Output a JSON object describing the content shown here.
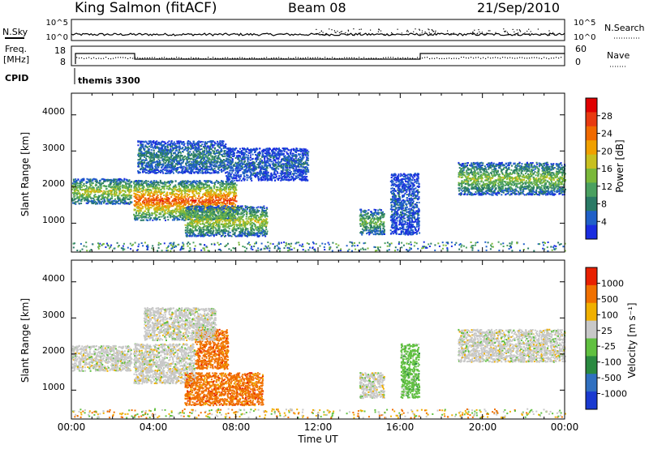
{
  "header": {
    "station": "King Salmon (fitACF)",
    "beam": "Beam 08",
    "date": "21/Sep/2010"
  },
  "top_panels": {
    "nsky_label": "N.Sky",
    "nsky_ticks": [
      "10^5",
      "10^0"
    ],
    "nsearch_label": "N.Search",
    "nsearch_ticks": [
      "10^5",
      "10^0"
    ],
    "freq_label": "Freq.",
    "freq_unit": "[MHz]",
    "freq_ticks": [
      "18",
      "8"
    ],
    "nave_label": "Nave",
    "nave_ticks": [
      "60",
      "0"
    ],
    "cpid_label": "CPID",
    "cpid_value": "themis 3300"
  },
  "chart_data": [
    {
      "type": "heatmap",
      "name": "power",
      "ylabel": "Slant Range [km]",
      "ylim": [
        200,
        4600
      ],
      "yticks": [
        "1000",
        "2000",
        "3000",
        "4000"
      ],
      "xlim": [
        0,
        24
      ],
      "colorbar": {
        "label": "Power [dB]",
        "ticks": [
          "4",
          "8",
          "12",
          "16",
          "20",
          "24",
          "28"
        ],
        "colors": [
          "#1a2de0",
          "#2060c8",
          "#2a7a66",
          "#4aa060",
          "#7ab83a",
          "#c8c020",
          "#f0a000",
          "#f06a00",
          "#e83a10",
          "#e00000"
        ]
      },
      "blobs": [
        {
          "t0": 0.0,
          "t1": 2.9,
          "r0": 1550,
          "r1": 2250,
          "level": 0.45
        },
        {
          "t0": 3.0,
          "t1": 8.0,
          "r0": 1100,
          "r1": 2200,
          "level": 0.72
        },
        {
          "t0": 3.2,
          "t1": 7.5,
          "r0": 2400,
          "r1": 3300,
          "level": 0.2
        },
        {
          "t0": 5.5,
          "t1": 9.5,
          "r0": 650,
          "r1": 1500,
          "level": 0.45
        },
        {
          "t0": 7.5,
          "t1": 11.5,
          "r0": 2200,
          "r1": 3100,
          "level": 0.12
        },
        {
          "t0": 14.0,
          "t1": 15.2,
          "r0": 700,
          "r1": 1400,
          "level": 0.35
        },
        {
          "t0": 15.5,
          "t1": 16.9,
          "r0": 700,
          "r1": 2400,
          "level": 0.1
        },
        {
          "t0": 18.8,
          "t1": 24.0,
          "r0": 1800,
          "r1": 2700,
          "level": 0.4
        }
      ]
    },
    {
      "type": "heatmap",
      "name": "velocity",
      "ylabel": "Slant Range [km]",
      "ylim": [
        200,
        4600
      ],
      "yticks": [
        "1000",
        "2000",
        "3000",
        "4000"
      ],
      "xlim": [
        0,
        24
      ],
      "xticks": [
        "00:00",
        "04:00",
        "08:00",
        "12:00",
        "16:00",
        "20:00",
        "00:00"
      ],
      "xlabel": "Time UT",
      "colorbar": {
        "label": "Velocity [m s⁻¹]",
        "ticks": [
          "1000",
          "500",
          "100",
          "25",
          "-25",
          "-100",
          "-500",
          "-1000"
        ],
        "colors": [
          "#1a3ad0",
          "#3070c0",
          "#2a8a40",
          "#60c040",
          "#c8c8c8",
          "#f0b000",
          "#f07000",
          "#e82000"
        ]
      },
      "blobs": [
        {
          "t0": 0.0,
          "t1": 2.9,
          "r0": 1550,
          "r1": 2250,
          "level": 4
        },
        {
          "t0": 3.0,
          "t1": 6.0,
          "r0": 1200,
          "r1": 2300,
          "level": 4
        },
        {
          "t0": 5.5,
          "t1": 9.3,
          "r0": 600,
          "r1": 1500,
          "level": 6
        },
        {
          "t0": 6.0,
          "t1": 7.6,
          "r0": 1600,
          "r1": 2700,
          "level": 6
        },
        {
          "t0": 3.5,
          "t1": 7.0,
          "r0": 2400,
          "r1": 3300,
          "level": 4
        },
        {
          "t0": 14.0,
          "t1": 15.2,
          "r0": 800,
          "r1": 1500,
          "level": 4
        },
        {
          "t0": 16.0,
          "t1": 16.9,
          "r0": 800,
          "r1": 2300,
          "level": 3
        },
        {
          "t0": 18.8,
          "t1": 24.0,
          "r0": 1800,
          "r1": 2700,
          "level": 4
        }
      ]
    }
  ]
}
